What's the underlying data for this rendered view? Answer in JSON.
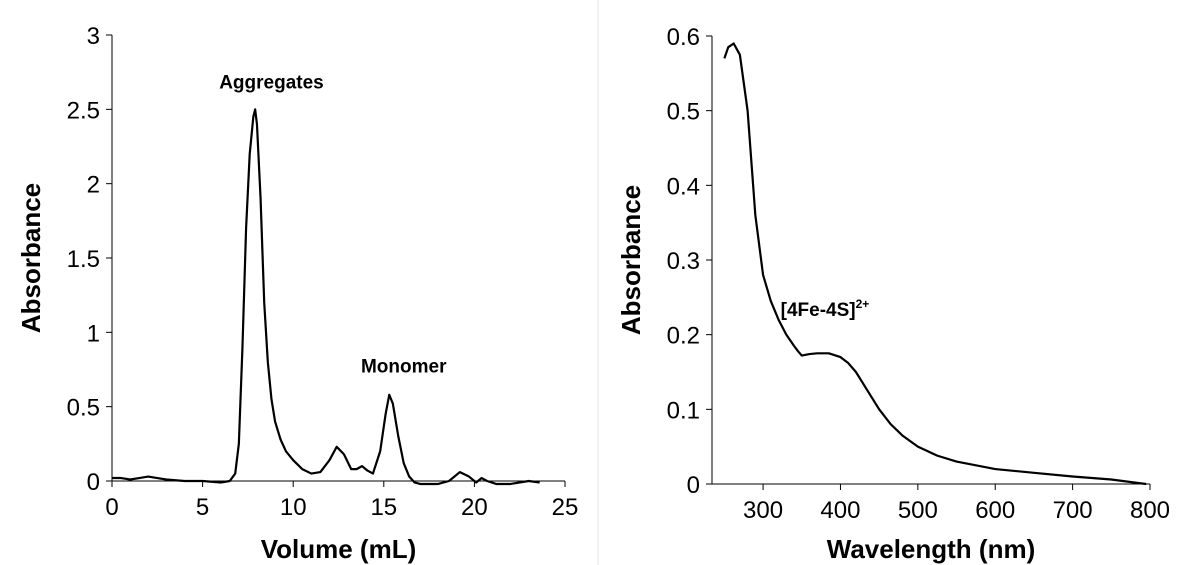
{
  "chart_data": [
    {
      "type": "line",
      "x": [
        0,
        0.5,
        1,
        1.5,
        2,
        2.5,
        3,
        4,
        5,
        6,
        6.5,
        6.8,
        7,
        7.2,
        7.4,
        7.6,
        7.8,
        7.9,
        8.0,
        8.2,
        8.4,
        8.6,
        8.8,
        9.0,
        9.3,
        9.6,
        10,
        10.5,
        11,
        11.5,
        12,
        12.4,
        12.8,
        13.2,
        13.5,
        13.8,
        14.1,
        14.4,
        14.8,
        15.1,
        15.3,
        15.5,
        15.8,
        16.1,
        16.4,
        16.7,
        17,
        18,
        18.6,
        19.2,
        19.7,
        20.1,
        20.4,
        20.7,
        21.2,
        22,
        23,
        23.6
      ],
      "series": [
        {
          "color": "#000000",
          "values": [
            0.02,
            0.02,
            0.01,
            0.02,
            0.03,
            0.02,
            0.01,
            0.0,
            0.0,
            -0.01,
            0.0,
            0.05,
            0.25,
            0.9,
            1.7,
            2.2,
            2.45,
            2.5,
            2.4,
            1.9,
            1.2,
            0.8,
            0.55,
            0.4,
            0.28,
            0.2,
            0.14,
            0.08,
            0.05,
            0.06,
            0.14,
            0.23,
            0.18,
            0.08,
            0.08,
            0.1,
            0.07,
            0.05,
            0.2,
            0.45,
            0.58,
            0.52,
            0.3,
            0.12,
            0.03,
            -0.01,
            -0.02,
            -0.02,
            0.0,
            0.06,
            0.03,
            -0.01,
            0.02,
            0.0,
            -0.02,
            -0.02,
            0.0,
            -0.01
          ]
        }
      ],
      "xlabel": "Volume (mL)",
      "ylabel": "Absorbance",
      "xlim": [
        0,
        25
      ],
      "ylim": [
        0,
        3
      ],
      "xticks": [
        0,
        5,
        10,
        15,
        20,
        25
      ],
      "yticks": [
        0,
        0.5,
        1,
        1.5,
        2,
        2.5,
        3
      ],
      "annotations": [
        {
          "text": "Aggregates",
          "x": 8.8,
          "y": 2.64
        },
        {
          "text": "Monomer",
          "x": 16.1,
          "y": 0.73
        }
      ]
    },
    {
      "type": "line",
      "x": [
        250,
        255,
        262,
        270,
        280,
        290,
        300,
        310,
        320,
        330,
        340,
        345,
        350,
        360,
        370,
        385,
        400,
        410,
        420,
        435,
        450,
        465,
        480,
        500,
        525,
        550,
        600,
        650,
        700,
        750,
        795
      ],
      "series": [
        {
          "color": "#000000",
          "values": [
            0.57,
            0.585,
            0.59,
            0.575,
            0.5,
            0.36,
            0.28,
            0.245,
            0.22,
            0.2,
            0.185,
            0.178,
            0.172,
            0.174,
            0.175,
            0.175,
            0.17,
            0.162,
            0.15,
            0.125,
            0.1,
            0.08,
            0.065,
            0.05,
            0.038,
            0.03,
            0.02,
            0.015,
            0.01,
            0.006,
            0.0
          ]
        }
      ],
      "xlabel": "Wavelength (nm)",
      "ylabel": "Absorbance",
      "xlim": [
        234,
        800
      ],
      "ylim": [
        0,
        0.6
      ],
      "xticks": [
        300,
        400,
        500,
        600,
        700,
        800
      ],
      "yticks": [
        0,
        0.1,
        0.2,
        0.3,
        0.4,
        0.5,
        0.6
      ],
      "annotations": [
        {
          "text": "[4Fe-4S]",
          "sup": "2+",
          "x": 380,
          "y": 0.225
        }
      ]
    }
  ]
}
